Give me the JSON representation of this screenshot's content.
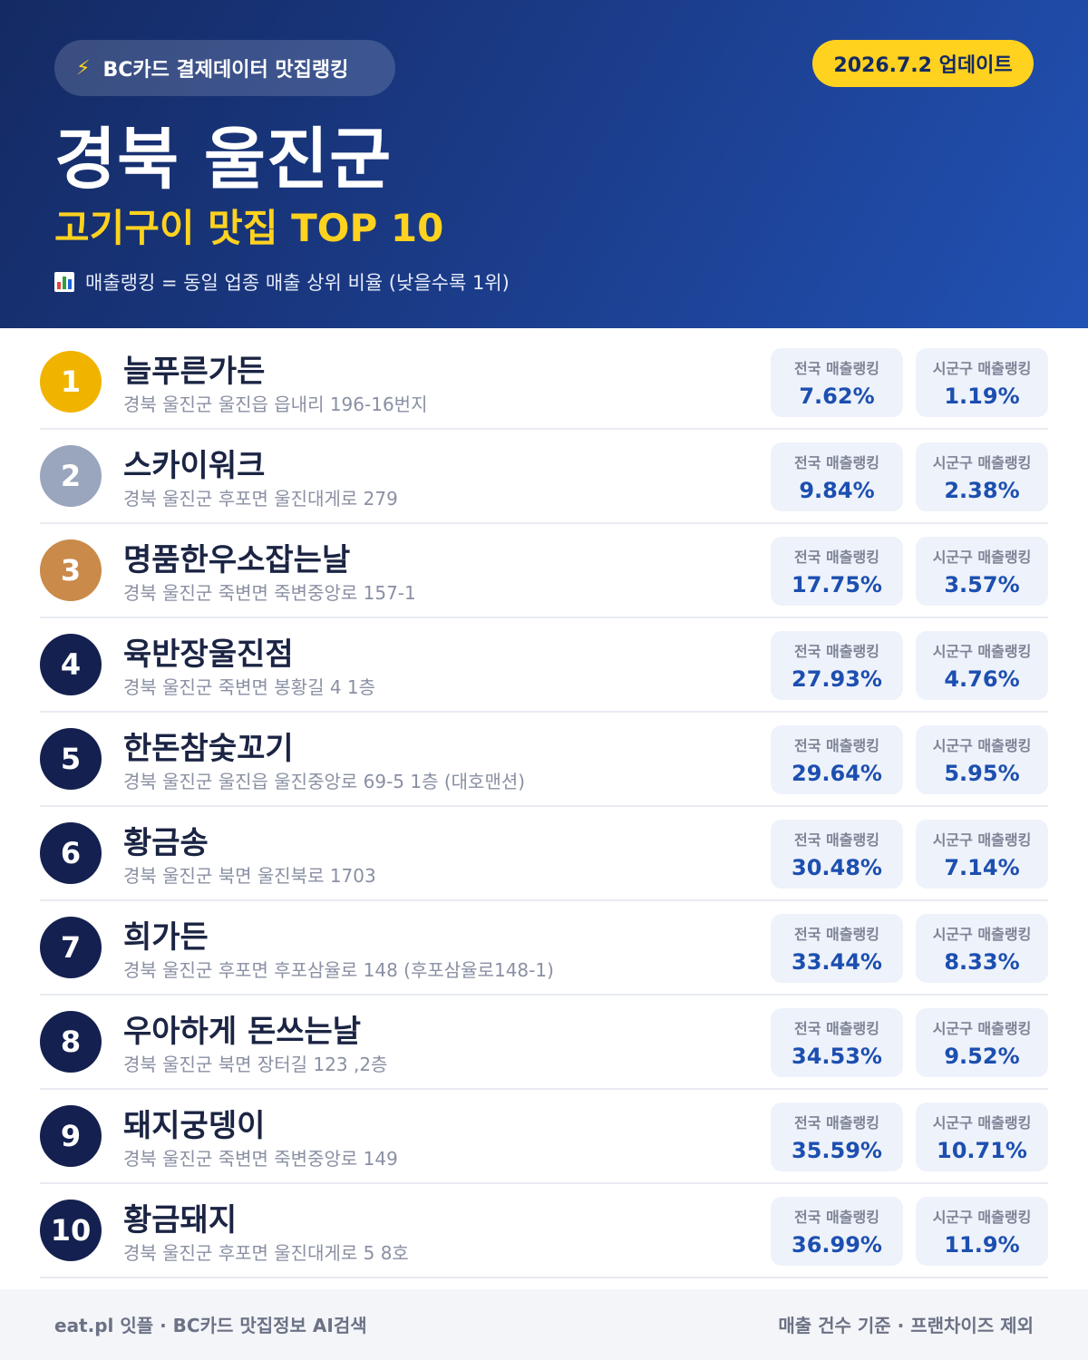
{
  "header": {
    "source_label": "BC카드 결제데이터 맛집랭킹",
    "source_icon": "lightning-bolt-icon",
    "update_label": "2026.7.2 업데이트",
    "region": "경북 울진군",
    "subtitle": "고기구이 맛집 TOP 10",
    "legend_icon": "bar-chart-icon",
    "legend": "매출랭킹 = 동일 업종 매출 상위 비율 (낮을수록 1위)"
  },
  "colors": {
    "header_start": "#142a63",
    "header_end": "#2152b4",
    "accent_yellow": "#ffd21f",
    "rank_gold": "#f0b400",
    "rank_silver": "#9aa6bd",
    "rank_bronze": "#c98a4a",
    "rank_default": "#14204f",
    "value_blue": "#1c4fb0"
  },
  "stat_labels": {
    "national": "전국 매출랭킹",
    "local": "시군구 매출랭킹"
  },
  "restaurants": [
    {
      "rank": "1",
      "name": "늘푸른가든",
      "address": "경북 울진군 울진읍 읍내리 196-16번지",
      "national": "7.62%",
      "local": "1.19%"
    },
    {
      "rank": "2",
      "name": "스카이워크",
      "address": "경북 울진군 후포면 울진대게로 279",
      "national": "9.84%",
      "local": "2.38%"
    },
    {
      "rank": "3",
      "name": "명품한우소잡는날",
      "address": "경북 울진군 죽변면 죽변중앙로 157-1",
      "national": "17.75%",
      "local": "3.57%"
    },
    {
      "rank": "4",
      "name": "육반장울진점",
      "address": "경북 울진군 죽변면 봉황길 4 1층",
      "national": "27.93%",
      "local": "4.76%"
    },
    {
      "rank": "5",
      "name": "한돈참숯꼬기",
      "address": "경북 울진군 울진읍 울진중앙로 69-5 1층 (대호맨션)",
      "national": "29.64%",
      "local": "5.95%"
    },
    {
      "rank": "6",
      "name": "황금송",
      "address": "경북 울진군 북면 울진북로 1703",
      "national": "30.48%",
      "local": "7.14%"
    },
    {
      "rank": "7",
      "name": "희가든",
      "address": "경북 울진군 후포면 후포삼율로 148 (후포삼율로148-1)",
      "national": "33.44%",
      "local": "8.33%"
    },
    {
      "rank": "8",
      "name": "우아하게 돈쓰는날",
      "address": "경북 울진군 북면 장터길 123 ,2층",
      "national": "34.53%",
      "local": "9.52%"
    },
    {
      "rank": "9",
      "name": "돼지궁뎅이",
      "address": "경북 울진군 죽변면 죽변중앙로 149",
      "national": "35.59%",
      "local": "10.71%"
    },
    {
      "rank": "10",
      "name": "황금돼지",
      "address": "경북 울진군 후포면 울진대게로 5 8호",
      "national": "36.99%",
      "local": "11.9%"
    }
  ],
  "footer": {
    "left": "eat.pl 잇플 · BC카드 맛집정보 AI검색",
    "right": "매출 건수 기준 · 프랜차이즈 제외"
  }
}
